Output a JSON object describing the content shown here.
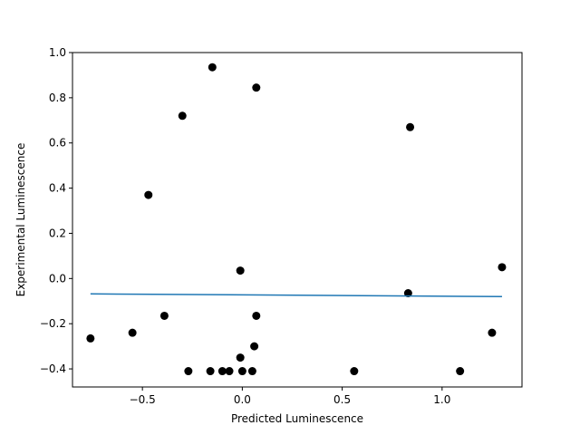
{
  "chart_data": {
    "type": "scatter",
    "title": "",
    "xlabel": "Predicted Luminescence",
    "ylabel": "Experimental Luminescence",
    "xlim": [
      -0.85,
      1.4
    ],
    "ylim": [
      -0.48,
      1.0
    ],
    "xticks": [
      -0.5,
      0.0,
      0.5,
      1.0
    ],
    "xtick_labels": [
      "−0.5",
      "0.0",
      "0.5",
      "1.0"
    ],
    "yticks": [
      -0.4,
      -0.2,
      0.0,
      0.2,
      0.4,
      0.6,
      0.8,
      1.0
    ],
    "ytick_labels": [
      "−0.4",
      "−0.2",
      "0.0",
      "0.2",
      "0.4",
      "0.6",
      "0.8",
      "1.0"
    ],
    "grid": false,
    "series": [
      {
        "kind": "scatter",
        "color": "#000000",
        "points": [
          {
            "x": -0.15,
            "y": 0.935
          },
          {
            "x": 0.07,
            "y": 0.845
          },
          {
            "x": -0.3,
            "y": 0.72
          },
          {
            "x": 0.84,
            "y": 0.67
          },
          {
            "x": -0.47,
            "y": 0.37
          },
          {
            "x": -0.01,
            "y": 0.035
          },
          {
            "x": 1.3,
            "y": 0.05
          },
          {
            "x": 0.83,
            "y": -0.065
          },
          {
            "x": -0.39,
            "y": -0.165
          },
          {
            "x": 0.07,
            "y": -0.165
          },
          {
            "x": -0.55,
            "y": -0.24
          },
          {
            "x": 1.25,
            "y": -0.24
          },
          {
            "x": -0.76,
            "y": -0.265
          },
          {
            "x": 0.06,
            "y": -0.3
          },
          {
            "x": -0.01,
            "y": -0.35
          },
          {
            "x": -0.27,
            "y": -0.41
          },
          {
            "x": -0.16,
            "y": -0.41
          },
          {
            "x": -0.1,
            "y": -0.41
          },
          {
            "x": -0.065,
            "y": -0.41
          },
          {
            "x": 0.0,
            "y": -0.41
          },
          {
            "x": 0.05,
            "y": -0.41
          },
          {
            "x": 0.56,
            "y": -0.41
          },
          {
            "x": 1.09,
            "y": -0.41
          }
        ]
      },
      {
        "kind": "line",
        "color": "#1f77b4",
        "points": [
          {
            "x": -0.76,
            "y": -0.068
          },
          {
            "x": 1.3,
            "y": -0.08
          }
        ]
      }
    ]
  }
}
